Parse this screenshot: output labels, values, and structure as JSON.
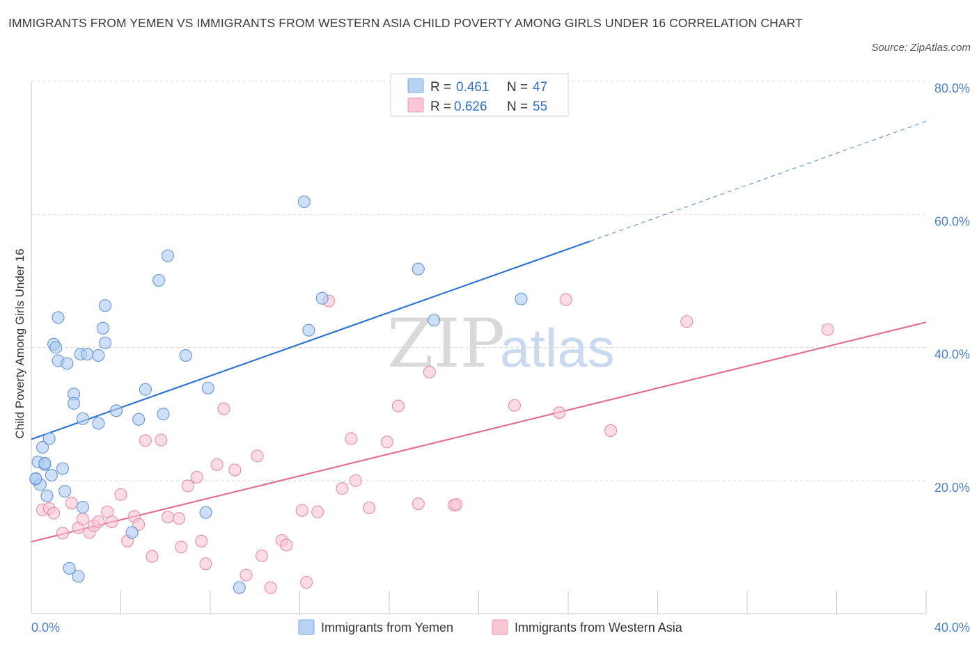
{
  "header": {
    "title": "IMMIGRANTS FROM YEMEN VS IMMIGRANTS FROM WESTERN ASIA CHILD POVERTY AMONG GIRLS UNDER 16 CORRELATION CHART",
    "source": "Source: ZipAtlas.com"
  },
  "legend": {
    "r_label": "R =",
    "n_label": "N =",
    "rows": [
      {
        "r": "0.461",
        "n": "47",
        "fill": "#b9d1f3",
        "stroke": "#7aa4e0"
      },
      {
        "r": "0.626",
        "n": "55",
        "fill": "#f9c6d6",
        "stroke": "#eb97b3"
      }
    ]
  },
  "bottom_legend": [
    {
      "label": "Immigrants from Yemen",
      "fill": "#b9d1f3",
      "stroke": "#7aa4e0"
    },
    {
      "label": "Immigrants from Western Asia",
      "fill": "#f9c6d6",
      "stroke": "#eb97b3"
    }
  ],
  "watermark": {
    "zip": "ZIP",
    "atlas": "atlas"
  },
  "colors": {
    "blue_point_fill": "#aecbf2",
    "blue_point_stroke": "#6f9bdb",
    "blue_line": "#2f75d0",
    "pink_point_fill": "#f8c3d3",
    "pink_point_stroke": "#e893b0",
    "pink_line": "#e26d97",
    "grid": "#d9d9d9",
    "tick_label": "#4a7fd0"
  },
  "chart_data": {
    "type": "scatter",
    "title": "IMMIGRANTS FROM YEMEN VS IMMIGRANTS FROM WESTERN ASIA CHILD POVERTY AMONG GIRLS UNDER 16 CORRELATION CHART",
    "xlabel": "",
    "ylabel": "Child Poverty Among Girls Under 16",
    "xlim": [
      0,
      40
    ],
    "ylim": [
      0,
      80
    ],
    "x_tick_labels": [
      "0.0%",
      "40.0%"
    ],
    "y_ticks": [
      20,
      40,
      60,
      80
    ],
    "y_tick_labels": [
      "20.0%",
      "40.0%",
      "60.0%",
      "80.0%"
    ],
    "grid": true,
    "legend_position": "top-center",
    "series": [
      {
        "name": "Immigrants from Yemen",
        "r": 0.461,
        "n": 47,
        "trend": {
          "x0": 0,
          "y0": 26.2,
          "x1": 25,
          "y1": 56.0,
          "dashed_to_x": 40,
          "dashed_to_y": 74.0
        },
        "points": [
          [
            0.2,
            20.2
          ],
          [
            0.3,
            22.8
          ],
          [
            0.4,
            19.4
          ],
          [
            0.5,
            25.0
          ],
          [
            0.6,
            22.4
          ],
          [
            0.6,
            22.6
          ],
          [
            0.7,
            17.7
          ],
          [
            0.8,
            26.3
          ],
          [
            0.9,
            20.8
          ],
          [
            1.0,
            40.5
          ],
          [
            1.1,
            40.0
          ],
          [
            1.2,
            44.5
          ],
          [
            1.2,
            38.0
          ],
          [
            1.4,
            21.8
          ],
          [
            1.5,
            18.4
          ],
          [
            1.6,
            37.6
          ],
          [
            1.7,
            6.8
          ],
          [
            1.9,
            33.0
          ],
          [
            1.9,
            31.6
          ],
          [
            2.1,
            5.6
          ],
          [
            2.2,
            39.0
          ],
          [
            2.3,
            16.0
          ],
          [
            2.3,
            29.3
          ],
          [
            2.5,
            39.0
          ],
          [
            3.0,
            28.6
          ],
          [
            3.0,
            38.8
          ],
          [
            3.2,
            42.9
          ],
          [
            3.3,
            40.7
          ],
          [
            3.3,
            46.3
          ],
          [
            3.8,
            30.5
          ],
          [
            4.8,
            29.2
          ],
          [
            4.5,
            12.2
          ],
          [
            5.1,
            33.7
          ],
          [
            5.7,
            50.1
          ],
          [
            5.9,
            30.0
          ],
          [
            6.1,
            53.8
          ],
          [
            6.9,
            38.8
          ],
          [
            7.8,
            15.2
          ],
          [
            7.9,
            33.9
          ],
          [
            9.3,
            3.9
          ],
          [
            12.2,
            61.9
          ],
          [
            12.4,
            42.6
          ],
          [
            13.0,
            47.4
          ],
          [
            17.3,
            51.8
          ],
          [
            18.0,
            44.1
          ],
          [
            21.9,
            47.3
          ],
          [
            0.2,
            20.3
          ]
        ]
      },
      {
        "name": "Immigrants from Western Asia",
        "r": 0.626,
        "n": 55,
        "trend": {
          "x0": 0,
          "y0": 10.8,
          "x1": 40,
          "y1": 43.8
        },
        "points": [
          [
            0.5,
            15.6
          ],
          [
            0.8,
            15.8
          ],
          [
            1.0,
            15.1
          ],
          [
            1.4,
            12.1
          ],
          [
            1.8,
            16.6
          ],
          [
            2.1,
            12.9
          ],
          [
            2.3,
            14.2
          ],
          [
            2.6,
            12.2
          ],
          [
            2.8,
            13.2
          ],
          [
            3.0,
            13.8
          ],
          [
            3.4,
            15.3
          ],
          [
            3.6,
            13.8
          ],
          [
            4.0,
            17.9
          ],
          [
            4.3,
            10.9
          ],
          [
            4.6,
            14.6
          ],
          [
            4.8,
            13.4
          ],
          [
            5.1,
            26.0
          ],
          [
            5.4,
            8.6
          ],
          [
            5.8,
            26.1
          ],
          [
            6.1,
            14.5
          ],
          [
            6.6,
            14.3
          ],
          [
            6.7,
            10.0
          ],
          [
            7.0,
            19.2
          ],
          [
            7.4,
            20.5
          ],
          [
            7.6,
            10.9
          ],
          [
            7.8,
            7.5
          ],
          [
            8.3,
            22.4
          ],
          [
            8.6,
            30.8
          ],
          [
            9.1,
            21.6
          ],
          [
            9.6,
            5.8
          ],
          [
            10.1,
            23.7
          ],
          [
            10.3,
            8.7
          ],
          [
            10.7,
            3.9
          ],
          [
            11.2,
            11.0
          ],
          [
            11.4,
            10.3
          ],
          [
            12.1,
            15.5
          ],
          [
            12.3,
            4.7
          ],
          [
            12.8,
            15.3
          ],
          [
            13.3,
            47.0
          ],
          [
            13.9,
            18.8
          ],
          [
            14.3,
            26.3
          ],
          [
            14.5,
            20.0
          ],
          [
            15.1,
            15.9
          ],
          [
            15.9,
            25.8
          ],
          [
            16.4,
            31.2
          ],
          [
            17.3,
            16.5
          ],
          [
            17.8,
            36.3
          ],
          [
            18.9,
            16.3
          ],
          [
            19.0,
            16.4
          ],
          [
            21.6,
            31.3
          ],
          [
            23.6,
            30.2
          ],
          [
            23.9,
            47.2
          ],
          [
            25.9,
            27.5
          ],
          [
            29.3,
            43.9
          ],
          [
            35.6,
            42.7
          ]
        ]
      }
    ]
  }
}
